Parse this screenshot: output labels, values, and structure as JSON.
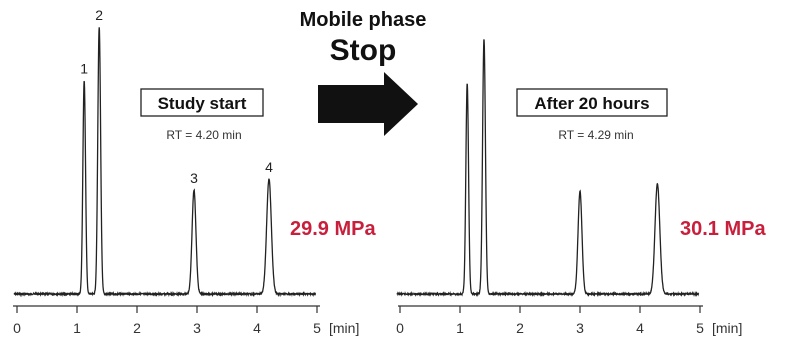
{
  "header": {
    "line1": "Mobile phase",
    "line2": "Stop"
  },
  "chart_data": [
    {
      "type": "line",
      "title": "Study start",
      "annotation": "RT = 4.20 min",
      "pressure": "29.9 MPa",
      "x_unit": "[min]",
      "xlim": [
        0,
        5
      ],
      "xticks": [
        0,
        1,
        2,
        3,
        4,
        5
      ],
      "peaks": [
        {
          "label": "1",
          "rt": 1.12,
          "height": 0.8
        },
        {
          "label": "2",
          "rt": 1.37,
          "height": 1.0
        },
        {
          "label": "3",
          "rt": 2.95,
          "height": 0.39
        },
        {
          "label": "4",
          "rt": 4.2,
          "height": 0.43
        }
      ]
    },
    {
      "type": "line",
      "title": "After 20 hours",
      "annotation": "RT = 4.29 min",
      "pressure": "30.1 MPa",
      "x_unit": "[min]",
      "xlim": [
        0,
        5
      ],
      "xticks": [
        0,
        1,
        2,
        3,
        4,
        5
      ],
      "peaks": [
        {
          "label": "",
          "rt": 1.12,
          "height": 0.8
        },
        {
          "label": "",
          "rt": 1.4,
          "height": 0.97
        },
        {
          "label": "",
          "rt": 3.0,
          "height": 0.39
        },
        {
          "label": "",
          "rt": 4.29,
          "height": 0.42
        }
      ]
    }
  ]
}
